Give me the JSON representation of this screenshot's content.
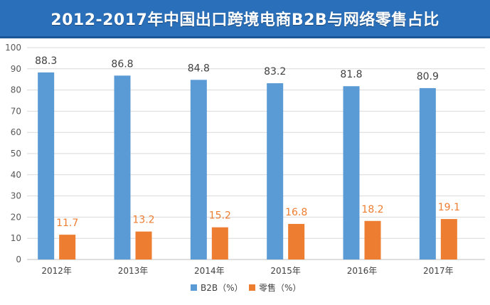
{
  "chart_data": {
    "type": "bar",
    "title": "2012-2017年中国出口跨境电商B2B与网络零售占比",
    "categories": [
      "2012年",
      "2013年",
      "2014年",
      "2015年",
      "2016年",
      "2017年"
    ],
    "series": [
      {
        "name": "B2B（%）",
        "color": "#5b9bd5",
        "values": [
          88.3,
          86.8,
          84.8,
          83.2,
          81.8,
          80.9
        ]
      },
      {
        "name": "零售（%）",
        "color": "#ed7d31",
        "values": [
          11.7,
          13.2,
          15.2,
          16.8,
          18.2,
          19.1
        ]
      }
    ],
    "ylim": [
      0,
      100
    ],
    "yticks": [
      0,
      10,
      20,
      30,
      40,
      50,
      60,
      70,
      80,
      90,
      100
    ],
    "grid": true,
    "legend": "bottom-center",
    "xlabel": "",
    "ylabel": ""
  }
}
